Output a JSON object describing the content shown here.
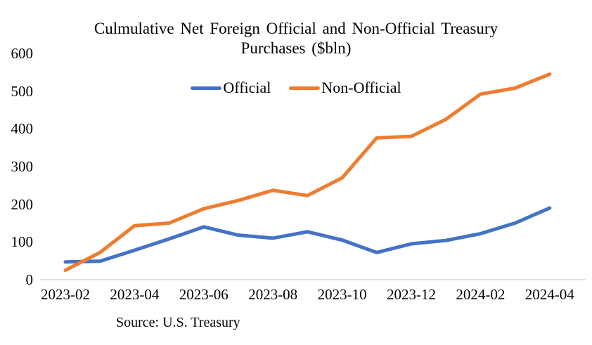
{
  "chart_data": {
    "type": "line",
    "title": "Culmulative Net Foreign Official and Non-Official Treasury Purchases ($bln)",
    "title_lines": [
      "Culmulative Net Foreign Official and Non-Official Treasury",
      "Purchases ($bln)"
    ],
    "categories": [
      "2023-02",
      "2023-03",
      "2023-04",
      "2023-05",
      "2023-06",
      "2023-07",
      "2023-08",
      "2023-09",
      "2023-10",
      "2023-11",
      "2023-12",
      "2024-01",
      "2024-02",
      "2024-03",
      "2024-04"
    ],
    "series": [
      {
        "name": "Official",
        "color": "#4472C4",
        "values": [
          47,
          49,
          78,
          108,
          140,
          118,
          110,
          127,
          105,
          72,
          95,
          104,
          122,
          150,
          190
        ]
      },
      {
        "name": "Non-Official",
        "color": "#ED7D31",
        "values": [
          25,
          72,
          143,
          150,
          188,
          210,
          237,
          223,
          270,
          376,
          380,
          425,
          492,
          508,
          545
        ]
      }
    ],
    "xlabel": "",
    "ylabel": "",
    "ylim": [
      0,
      600
    ],
    "yticks": [
      0,
      100,
      200,
      300,
      400,
      500,
      600
    ],
    "xtick_labels": [
      "2023-02",
      "2023-04",
      "2023-06",
      "2023-08",
      "2023-10",
      "2023-12",
      "2024-02",
      "2024-04"
    ],
    "grid": "off",
    "legend_position": "top-center",
    "axis_color": "#D9D9D9",
    "background_color": "#FFFFFF"
  },
  "source_note": "Source: U.S. Treasury"
}
